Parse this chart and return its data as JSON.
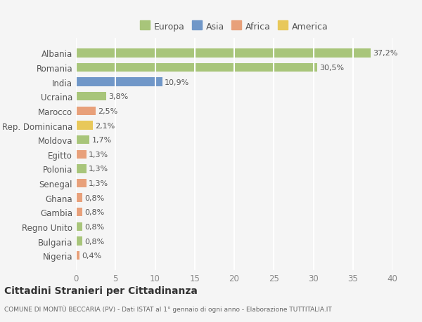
{
  "countries": [
    "Albania",
    "Romania",
    "India",
    "Ucraina",
    "Marocco",
    "Rep. Dominicana",
    "Moldova",
    "Egitto",
    "Polonia",
    "Senegal",
    "Ghana",
    "Gambia",
    "Regno Unito",
    "Bulgaria",
    "Nigeria"
  ],
  "values": [
    37.2,
    30.5,
    10.9,
    3.8,
    2.5,
    2.1,
    1.7,
    1.3,
    1.3,
    1.3,
    0.8,
    0.8,
    0.8,
    0.8,
    0.4
  ],
  "labels": [
    "37,2%",
    "30,5%",
    "10,9%",
    "3,8%",
    "2,5%",
    "2,1%",
    "1,7%",
    "1,3%",
    "1,3%",
    "1,3%",
    "0,8%",
    "0,8%",
    "0,8%",
    "0,8%",
    "0,4%"
  ],
  "continents": [
    "Europa",
    "Europa",
    "Asia",
    "Europa",
    "Africa",
    "America",
    "Europa",
    "Africa",
    "Europa",
    "Africa",
    "Africa",
    "Africa",
    "Europa",
    "Europa",
    "Africa"
  ],
  "colors": {
    "Europa": "#a8c57a",
    "Asia": "#7097c8",
    "Africa": "#e8a07a",
    "America": "#e8c85a"
  },
  "legend_order": [
    "Europa",
    "Asia",
    "Africa",
    "America"
  ],
  "title": "Cittadini Stranieri per Cittadinanza",
  "subtitle": "COMUNE DI MONTÙ BECCARIA (PV) - Dati ISTAT al 1° gennaio di ogni anno - Elaborazione TUTTITALIA.IT",
  "xlim": [
    0,
    40
  ],
  "xticks": [
    0,
    5,
    10,
    15,
    20,
    25,
    30,
    35,
    40
  ],
  "background_color": "#f5f5f5",
  "grid_color": "#ffffff",
  "bar_height": 0.6
}
